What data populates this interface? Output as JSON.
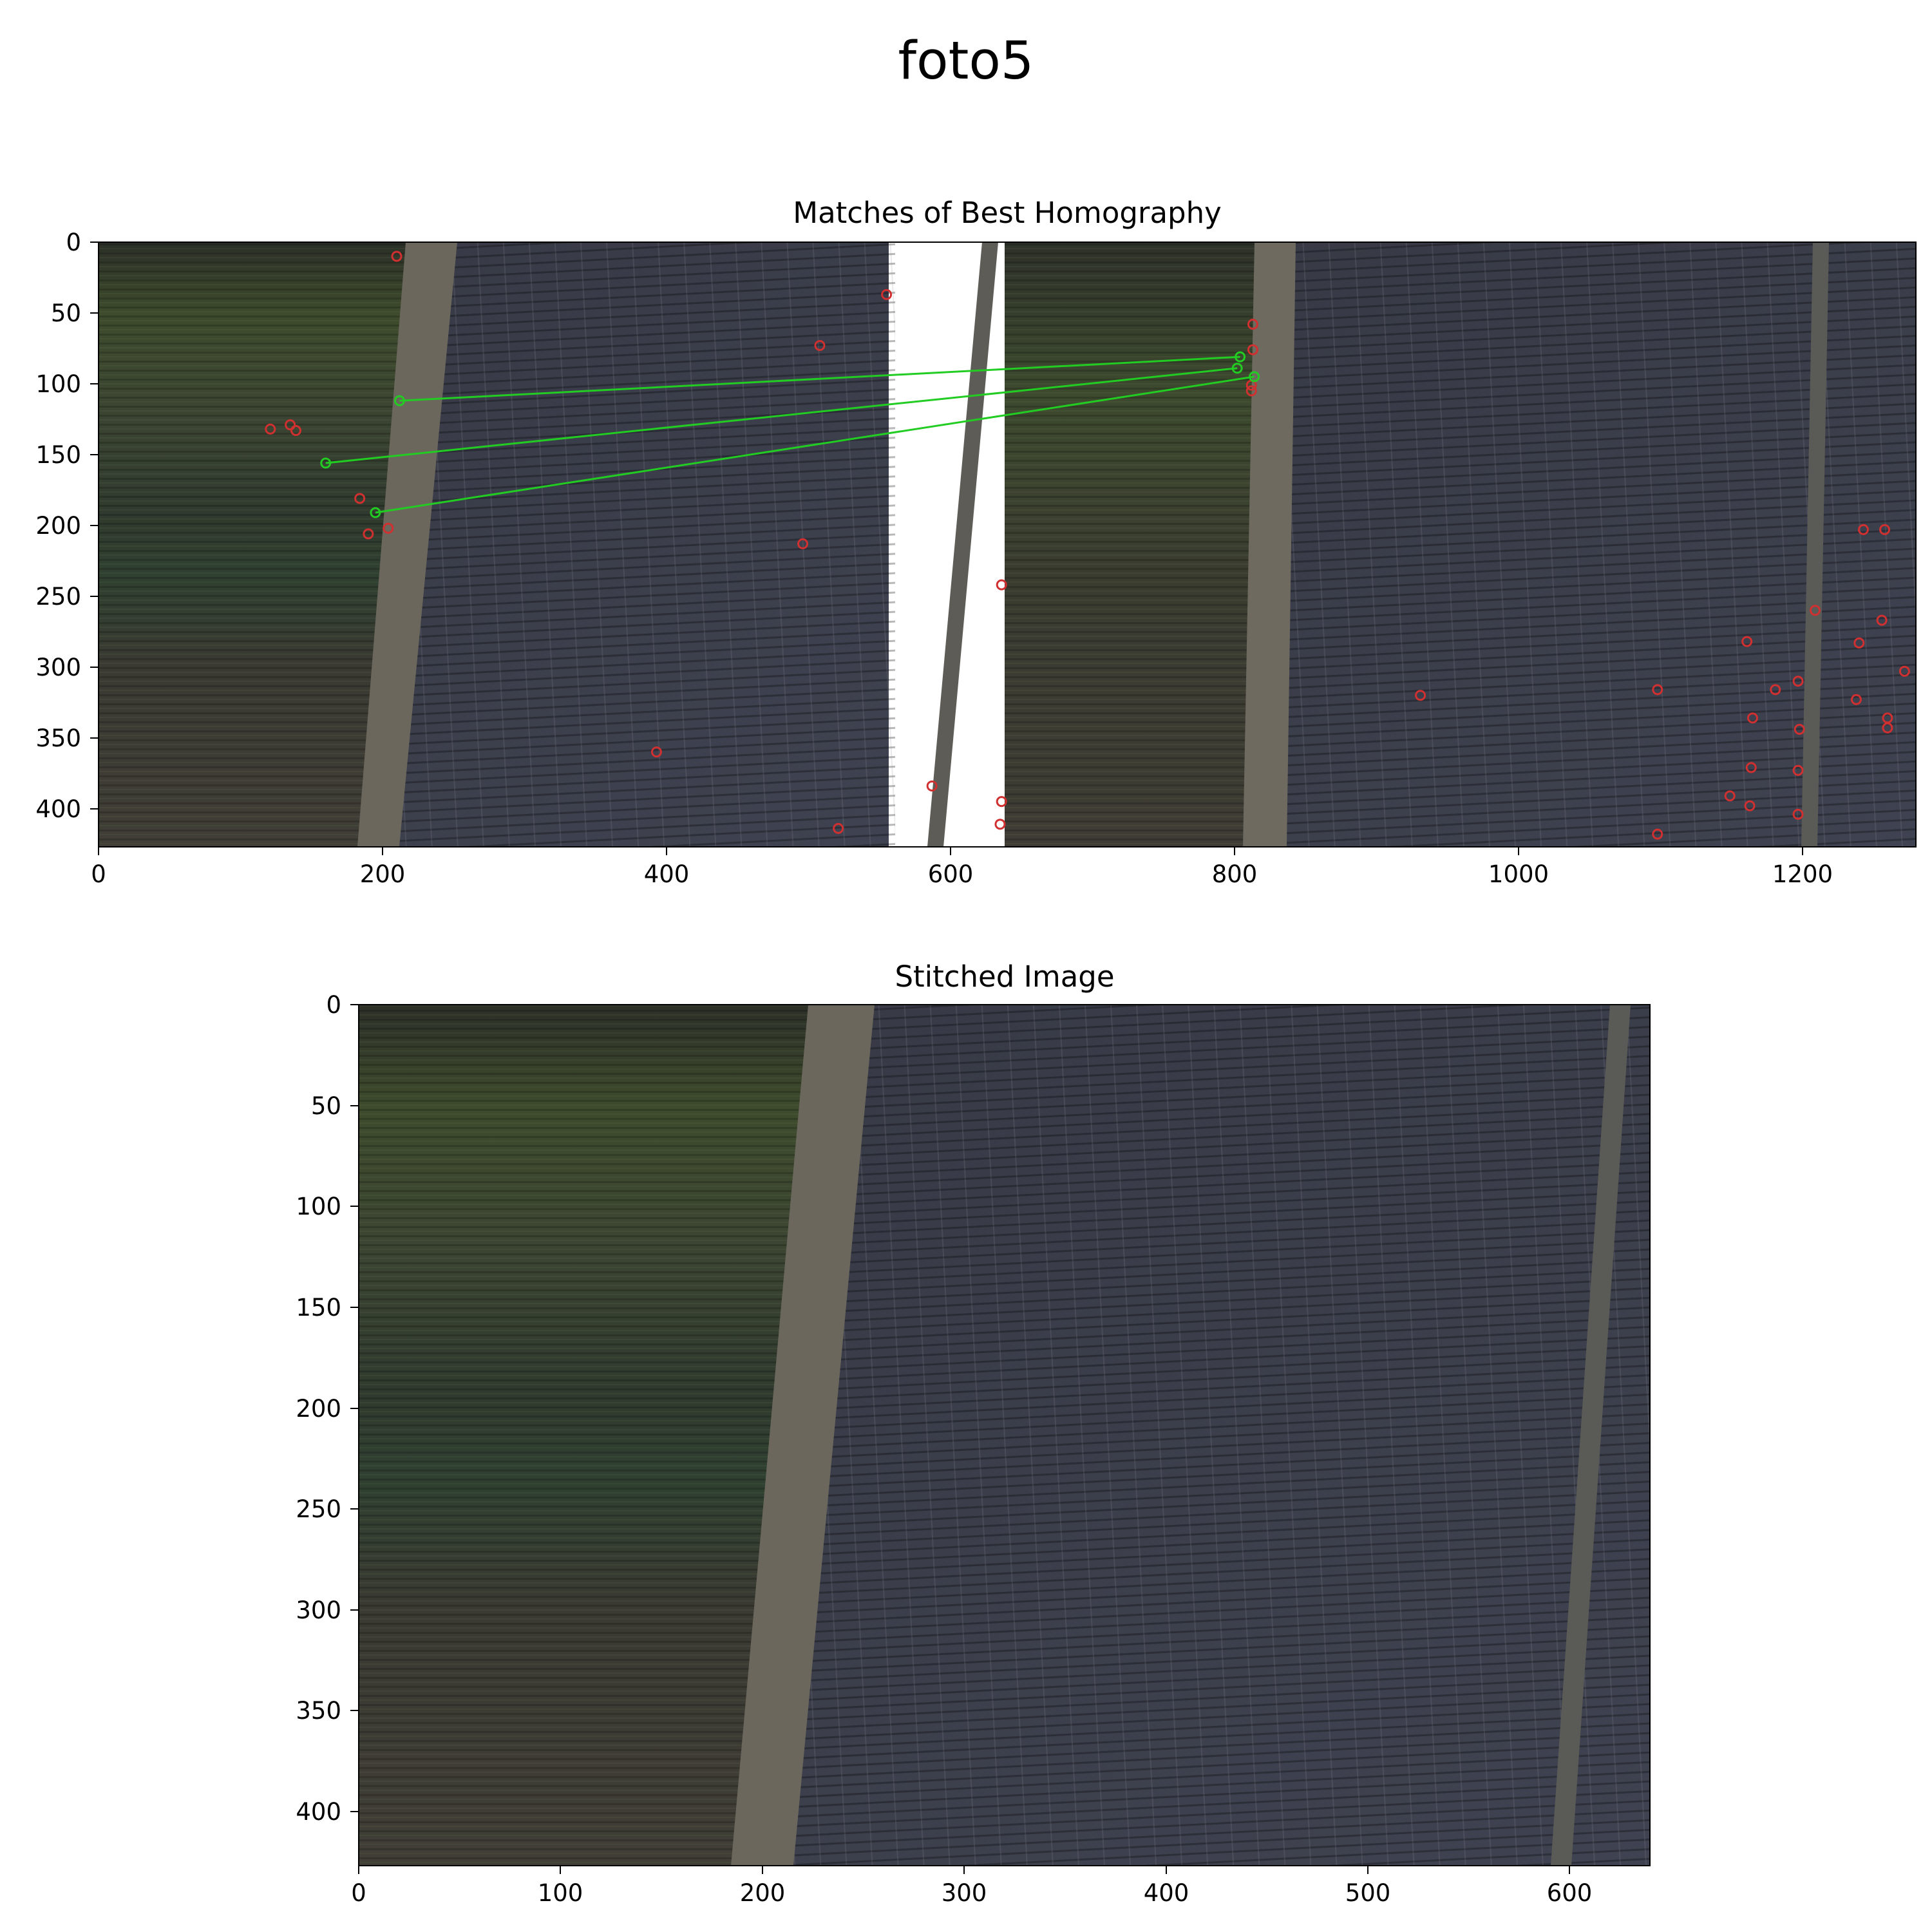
{
  "figure": {
    "title": "foto5"
  },
  "colors": {
    "inlier": "#22cc22",
    "outlier": "#d03030",
    "field_green": "#3a4a30",
    "field_soil": "#3a3a30",
    "road": "#6a665c",
    "panels": "#3c3f4c"
  },
  "chart_data": [
    {
      "type": "scatter",
      "title": "Matches of Best Homography",
      "xlabel": "",
      "ylabel": "",
      "xlim": [
        0,
        1280
      ],
      "ylim": [
        427,
        0
      ],
      "xticks": [
        "0",
        "200",
        "400",
        "600",
        "800",
        "1000",
        "1200"
      ],
      "yticks": [
        "0",
        "50",
        "100",
        "150",
        "200",
        "250",
        "300",
        "350",
        "400"
      ],
      "background": "two side-by-side aerial photos (crop field, dirt road, solar panel rows)",
      "inlier_matches": [
        {
          "from": [
            212,
            112
          ],
          "to": [
            804,
            81
          ]
        },
        {
          "from": [
            160,
            156
          ],
          "to": [
            802,
            89
          ]
        },
        {
          "from": [
            195,
            191
          ],
          "to": [
            814,
            95
          ]
        }
      ],
      "outlier_keypoints": [
        [
          210,
          10
        ],
        [
          555,
          37
        ],
        [
          508,
          73
        ],
        [
          121,
          132
        ],
        [
          135,
          129
        ],
        [
          139,
          133
        ],
        [
          184,
          181
        ],
        [
          204,
          202
        ],
        [
          190,
          206
        ],
        [
          496,
          213
        ],
        [
          636,
          242
        ],
        [
          393,
          360
        ],
        [
          587,
          384
        ],
        [
          636,
          395
        ],
        [
          521,
          414
        ],
        [
          635,
          411
        ],
        [
          813,
          58
        ],
        [
          813,
          76
        ],
        [
          812,
          101
        ],
        [
          812,
          105
        ],
        [
          931,
          320
        ],
        [
          1098,
          316
        ],
        [
          1098,
          418
        ],
        [
          1149,
          391
        ],
        [
          1161,
          282
        ],
        [
          1165,
          336
        ],
        [
          1164,
          371
        ],
        [
          1163,
          398
        ],
        [
          1181,
          316
        ],
        [
          1197,
          310
        ],
        [
          1198,
          344
        ],
        [
          1197,
          373
        ],
        [
          1197,
          404
        ],
        [
          1209,
          260
        ],
        [
          1238,
          323
        ],
        [
          1240,
          283
        ],
        [
          1243,
          203
        ],
        [
          1256,
          267
        ],
        [
          1258,
          203
        ],
        [
          1260,
          336
        ],
        [
          1260,
          343
        ],
        [
          1272,
          303
        ]
      ]
    },
    {
      "type": "image",
      "title": "Stitched Image",
      "xlabel": "",
      "ylabel": "",
      "xlim": [
        0,
        640
      ],
      "ylim": [
        427,
        0
      ],
      "xticks": [
        "0",
        "100",
        "200",
        "300",
        "400",
        "500",
        "600"
      ],
      "yticks": [
        "0",
        "50",
        "100",
        "150",
        "200",
        "250",
        "300",
        "350",
        "400"
      ],
      "background": "stitched aerial photo (crop field, dirt road, solar panel rows)"
    }
  ]
}
